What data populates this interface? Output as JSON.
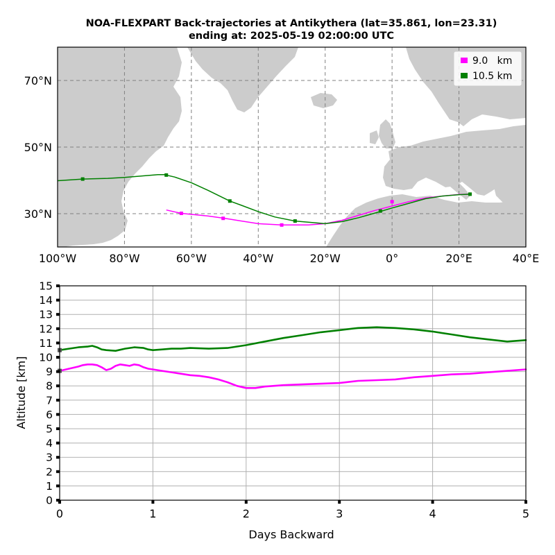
{
  "chart_data": [
    {
      "type": "map",
      "title_line1": "NOA-FLEXPART Back-trajectories at Antikythera (lat=35.861, lon=23.31)",
      "title_line2": "ending at: 2025-05-19  02:00:00 UTC",
      "xlim": [
        -100,
        40
      ],
      "ylim": [
        20,
        80
      ],
      "x_ticks": [
        -100,
        -80,
        -60,
        -40,
        -20,
        0,
        20,
        40
      ],
      "x_tick_labels": [
        "100°W",
        "80°W",
        "60°W",
        "40°W",
        "20°W",
        "0°",
        "20°E",
        "40°E"
      ],
      "y_ticks": [
        30,
        50,
        70
      ],
      "y_tick_labels": [
        "30°N",
        "50°N",
        "70°N"
      ],
      "grid": true,
      "legend_position": "top-right",
      "series": [
        {
          "name": "9.0   km",
          "color": "#ff00ff",
          "lon": [
            23.31,
            20,
            15,
            10,
            5,
            0,
            -5,
            -10,
            -15,
            -20,
            -25,
            -30,
            -33,
            -40,
            -45,
            -50,
            -55,
            -60,
            -63,
            -67.5
          ],
          "lat": [
            35.86,
            35.8,
            35.3,
            34.7,
            33.6,
            32.3,
            31.0,
            29.5,
            28.0,
            27.0,
            26.6,
            26.6,
            26.6,
            27.0,
            27.8,
            28.6,
            29.3,
            29.8,
            30.1,
            31.1
          ],
          "marker_lon": [
            0,
            -33,
            -50.5,
            -63
          ],
          "marker_lat": [
            33.6,
            26.6,
            28.6,
            30.1
          ]
        },
        {
          "name": "10.5 km",
          "color": "#008000",
          "lon": [
            23.31,
            20,
            15,
            10,
            5,
            0,
            -5,
            -10,
            -15,
            -20,
            -29,
            -35,
            -40,
            -45,
            -48.5,
            -55,
            -60,
            -65,
            -68,
            -70,
            -75,
            -80,
            -85,
            -92.5,
            -100
          ],
          "lat": [
            35.86,
            35.7,
            35.3,
            34.5,
            33.1,
            31.7,
            30.2,
            28.8,
            27.6,
            27.0,
            27.8,
            29.0,
            30.6,
            32.5,
            33.8,
            37.0,
            39.3,
            41.0,
            41.7,
            41.7,
            41.3,
            40.9,
            40.6,
            40.4,
            39.9
          ],
          "marker_lon": [
            23.31,
            -3.5,
            -29,
            -48.5,
            -67.5,
            -92.5
          ],
          "marker_lat": [
            35.86,
            30.8,
            27.8,
            33.8,
            41.6,
            40.4
          ]
        }
      ]
    },
    {
      "type": "line",
      "xlabel": "Days Backward",
      "ylabel": "Altitude [km]",
      "xlim": [
        0,
        5
      ],
      "ylim": [
        0,
        15
      ],
      "x_ticks": [
        0,
        1,
        2,
        3,
        4,
        5
      ],
      "y_ticks": [
        0,
        1,
        2,
        3,
        4,
        5,
        6,
        7,
        8,
        9,
        10,
        11,
        12,
        13,
        14,
        15
      ],
      "grid": true,
      "series": [
        {
          "name": "9.0   km",
          "color": "#ff00ff",
          "x": [
            0,
            0.1,
            0.2,
            0.25,
            0.3,
            0.35,
            0.4,
            0.45,
            0.5,
            0.55,
            0.6,
            0.65,
            0.7,
            0.75,
            0.8,
            0.85,
            0.9,
            0.95,
            1.0,
            1.1,
            1.2,
            1.3,
            1.4,
            1.5,
            1.6,
            1.7,
            1.8,
            1.9,
            2.0,
            2.1,
            2.2,
            2.4,
            2.6,
            2.8,
            3.0,
            3.2,
            3.4,
            3.6,
            3.8,
            4.0,
            4.2,
            4.4,
            4.6,
            4.8,
            5.0
          ],
          "y": [
            9.05,
            9.2,
            9.35,
            9.45,
            9.5,
            9.5,
            9.45,
            9.3,
            9.1,
            9.2,
            9.4,
            9.5,
            9.45,
            9.4,
            9.5,
            9.45,
            9.3,
            9.2,
            9.15,
            9.05,
            8.95,
            8.85,
            8.75,
            8.7,
            8.6,
            8.45,
            8.25,
            8.0,
            7.85,
            7.85,
            7.95,
            8.05,
            8.1,
            8.15,
            8.2,
            8.35,
            8.4,
            8.45,
            8.6,
            8.7,
            8.8,
            8.85,
            8.95,
            9.05,
            9.15
          ]
        },
        {
          "name": "10.5 km",
          "color": "#008000",
          "x": [
            0,
            0.1,
            0.2,
            0.3,
            0.35,
            0.4,
            0.45,
            0.5,
            0.6,
            0.7,
            0.8,
            0.9,
            0.95,
            1.0,
            1.1,
            1.2,
            1.3,
            1.4,
            1.6,
            1.8,
            2.0,
            2.2,
            2.4,
            2.6,
            2.8,
            3.0,
            3.2,
            3.4,
            3.6,
            3.8,
            4.0,
            4.2,
            4.4,
            4.6,
            4.8,
            5.0
          ],
          "y": [
            10.5,
            10.6,
            10.7,
            10.75,
            10.8,
            10.7,
            10.55,
            10.5,
            10.45,
            10.6,
            10.7,
            10.65,
            10.55,
            10.5,
            10.55,
            10.6,
            10.6,
            10.65,
            10.6,
            10.65,
            10.85,
            11.1,
            11.35,
            11.55,
            11.75,
            11.9,
            12.05,
            12.1,
            12.05,
            11.95,
            11.8,
            11.6,
            11.4,
            11.25,
            11.1,
            11.2
          ]
        }
      ]
    }
  ]
}
